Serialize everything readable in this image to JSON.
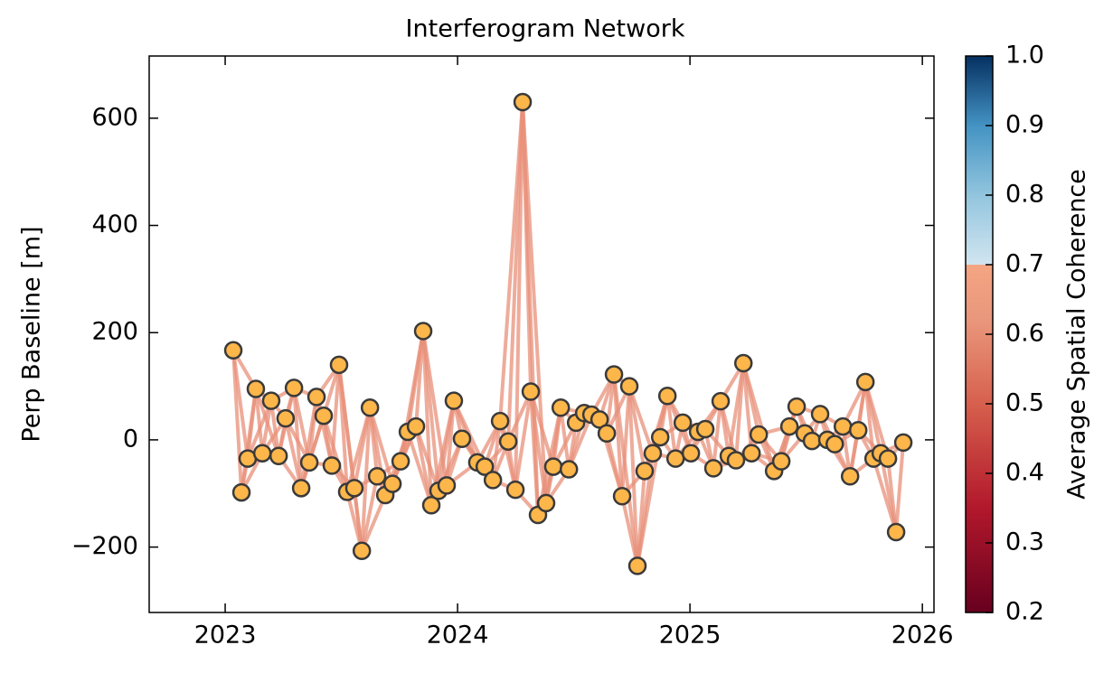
{
  "chart_data": {
    "type": "network",
    "title": "Interferogram Network",
    "y_label": "Perp Baseline [m]",
    "x": [
      2023.035,
      2023.07,
      2023.097,
      2023.132,
      2023.16,
      2023.198,
      2023.23,
      2023.26,
      2023.296,
      2023.327,
      2023.362,
      2023.393,
      2023.424,
      2023.459,
      2023.49,
      2023.525,
      2023.556,
      2023.588,
      2023.623,
      2023.654,
      2023.689,
      2023.72,
      2023.755,
      2023.786,
      2023.821,
      2023.852,
      2023.887,
      2023.918,
      2023.953,
      2023.984,
      2024.019,
      2024.085,
      2024.117,
      2024.152,
      2024.183,
      2024.218,
      2024.249,
      2024.28,
      2024.315,
      2024.346,
      2024.381,
      2024.412,
      2024.444,
      2024.479,
      2024.51,
      2024.545,
      2024.576,
      2024.611,
      2024.642,
      2024.673,
      2024.708,
      2024.739,
      2024.774,
      2024.805,
      2024.84,
      2024.872,
      2024.903,
      2024.938,
      2024.969,
      2025.004,
      2025.035,
      2025.066,
      2025.101,
      2025.132,
      2025.167,
      2025.198,
      2025.23,
      2025.265,
      2025.296,
      2025.362,
      2025.393,
      2025.428,
      2025.459,
      2025.494,
      2025.525,
      2025.56,
      2025.591,
      2025.623,
      2025.658,
      2025.689,
      2025.724,
      2025.755,
      2025.79,
      2025.821,
      2025.852,
      2025.887,
      2025.918
    ],
    "values": [
      167,
      -98,
      -35,
      95,
      -25,
      73,
      -30,
      40,
      97,
      -90,
      -42,
      80,
      45,
      -48,
      140,
      -97,
      -90,
      -207,
      60,
      -68,
      -103,
      -82,
      -40,
      15,
      25,
      203,
      -122,
      -95,
      -85,
      73,
      2,
      -42,
      -50,
      -75,
      35,
      -3,
      -93,
      630,
      90,
      -140,
      -118,
      -50,
      60,
      -55,
      32,
      50,
      47,
      38,
      12,
      122,
      -105,
      100,
      -235,
      -58,
      -25,
      5,
      82,
      -35,
      32,
      -25,
      15,
      20,
      -53,
      72,
      -30,
      -38,
      143,
      -25,
      10,
      -58,
      -40,
      25,
      62,
      12,
      -2,
      48,
      0,
      -8,
      25,
      -68,
      18,
      108,
      -35,
      -25,
      -35,
      -172,
      -5
    ],
    "point_color": "#fdb64a",
    "point_edge_color": "#3a3a3a",
    "edge_neighbors": 3,
    "edge_color": "#e8907a",
    "xlim": [
      2022.673,
      2026.05
    ],
    "xticks": [
      2023,
      2024,
      2025,
      2026
    ],
    "ylim": [
      -322,
      716
    ],
    "yticks": [
      {
        "value": -200,
        "label": "−200"
      },
      0,
      200,
      400,
      600
    ],
    "colorbar": {
      "label": "Average Spatial Coherence",
      "lim": [
        0.2,
        1.0
      ],
      "ticks": [
        0.2,
        0.3,
        0.4,
        0.5,
        0.6,
        0.7,
        0.8,
        0.9,
        {
          "value": 1.0,
          "label": "1.0"
        }
      ],
      "stops": [
        [
          0.2,
          "#67001f"
        ],
        [
          0.35,
          "#b2182b"
        ],
        [
          0.5,
          "#d6604d"
        ],
        [
          0.62,
          "#e9977c"
        ],
        [
          0.7,
          "#f4a582"
        ],
        [
          0.7,
          "#d1e5f0"
        ],
        [
          0.8,
          "#92c5de"
        ],
        [
          0.9,
          "#4393c3"
        ],
        [
          1.0,
          "#053061"
        ]
      ]
    }
  }
}
